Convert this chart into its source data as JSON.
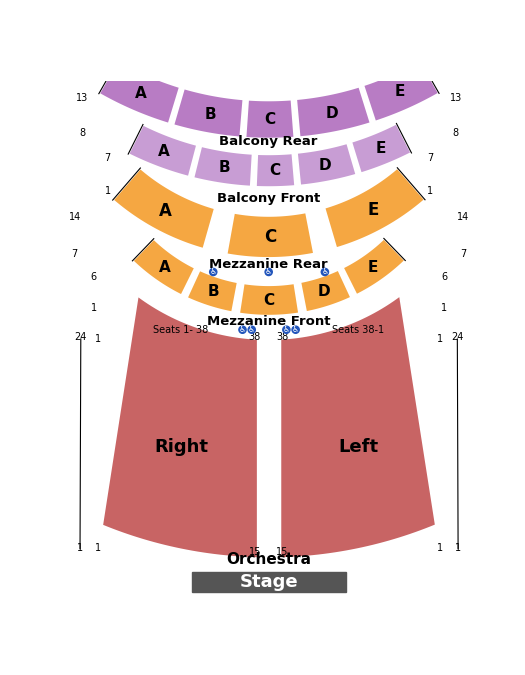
{
  "bg_color": "#ffffff",
  "balcony_rear_color": "#b87cc4",
  "balcony_front_color": "#c89dd4",
  "mezzanine_color": "#f5a742",
  "orchestra_color": "#c86464",
  "stage_color": "#555555",
  "stage_text_color": "#ffffff",
  "stage_label": "Stage",
  "balcony_rear_label": "Balcony Rear",
  "balcony_front_label": "Balcony Front",
  "mezz_rear_label": "Mezzanine Rear",
  "mezz_front_label": "Mezzanine Front",
  "orchestra_label": "Orchestra",
  "balcony_rear_sections": [
    "A",
    "B",
    "C",
    "D",
    "E"
  ],
  "balcony_front_sections": [
    "A",
    "B",
    "C",
    "D",
    "E"
  ],
  "mezz_rear_sections": [
    "A",
    "C",
    "E"
  ],
  "mezz_front_sections": [
    "A",
    "B",
    "C",
    "D",
    "E"
  ]
}
